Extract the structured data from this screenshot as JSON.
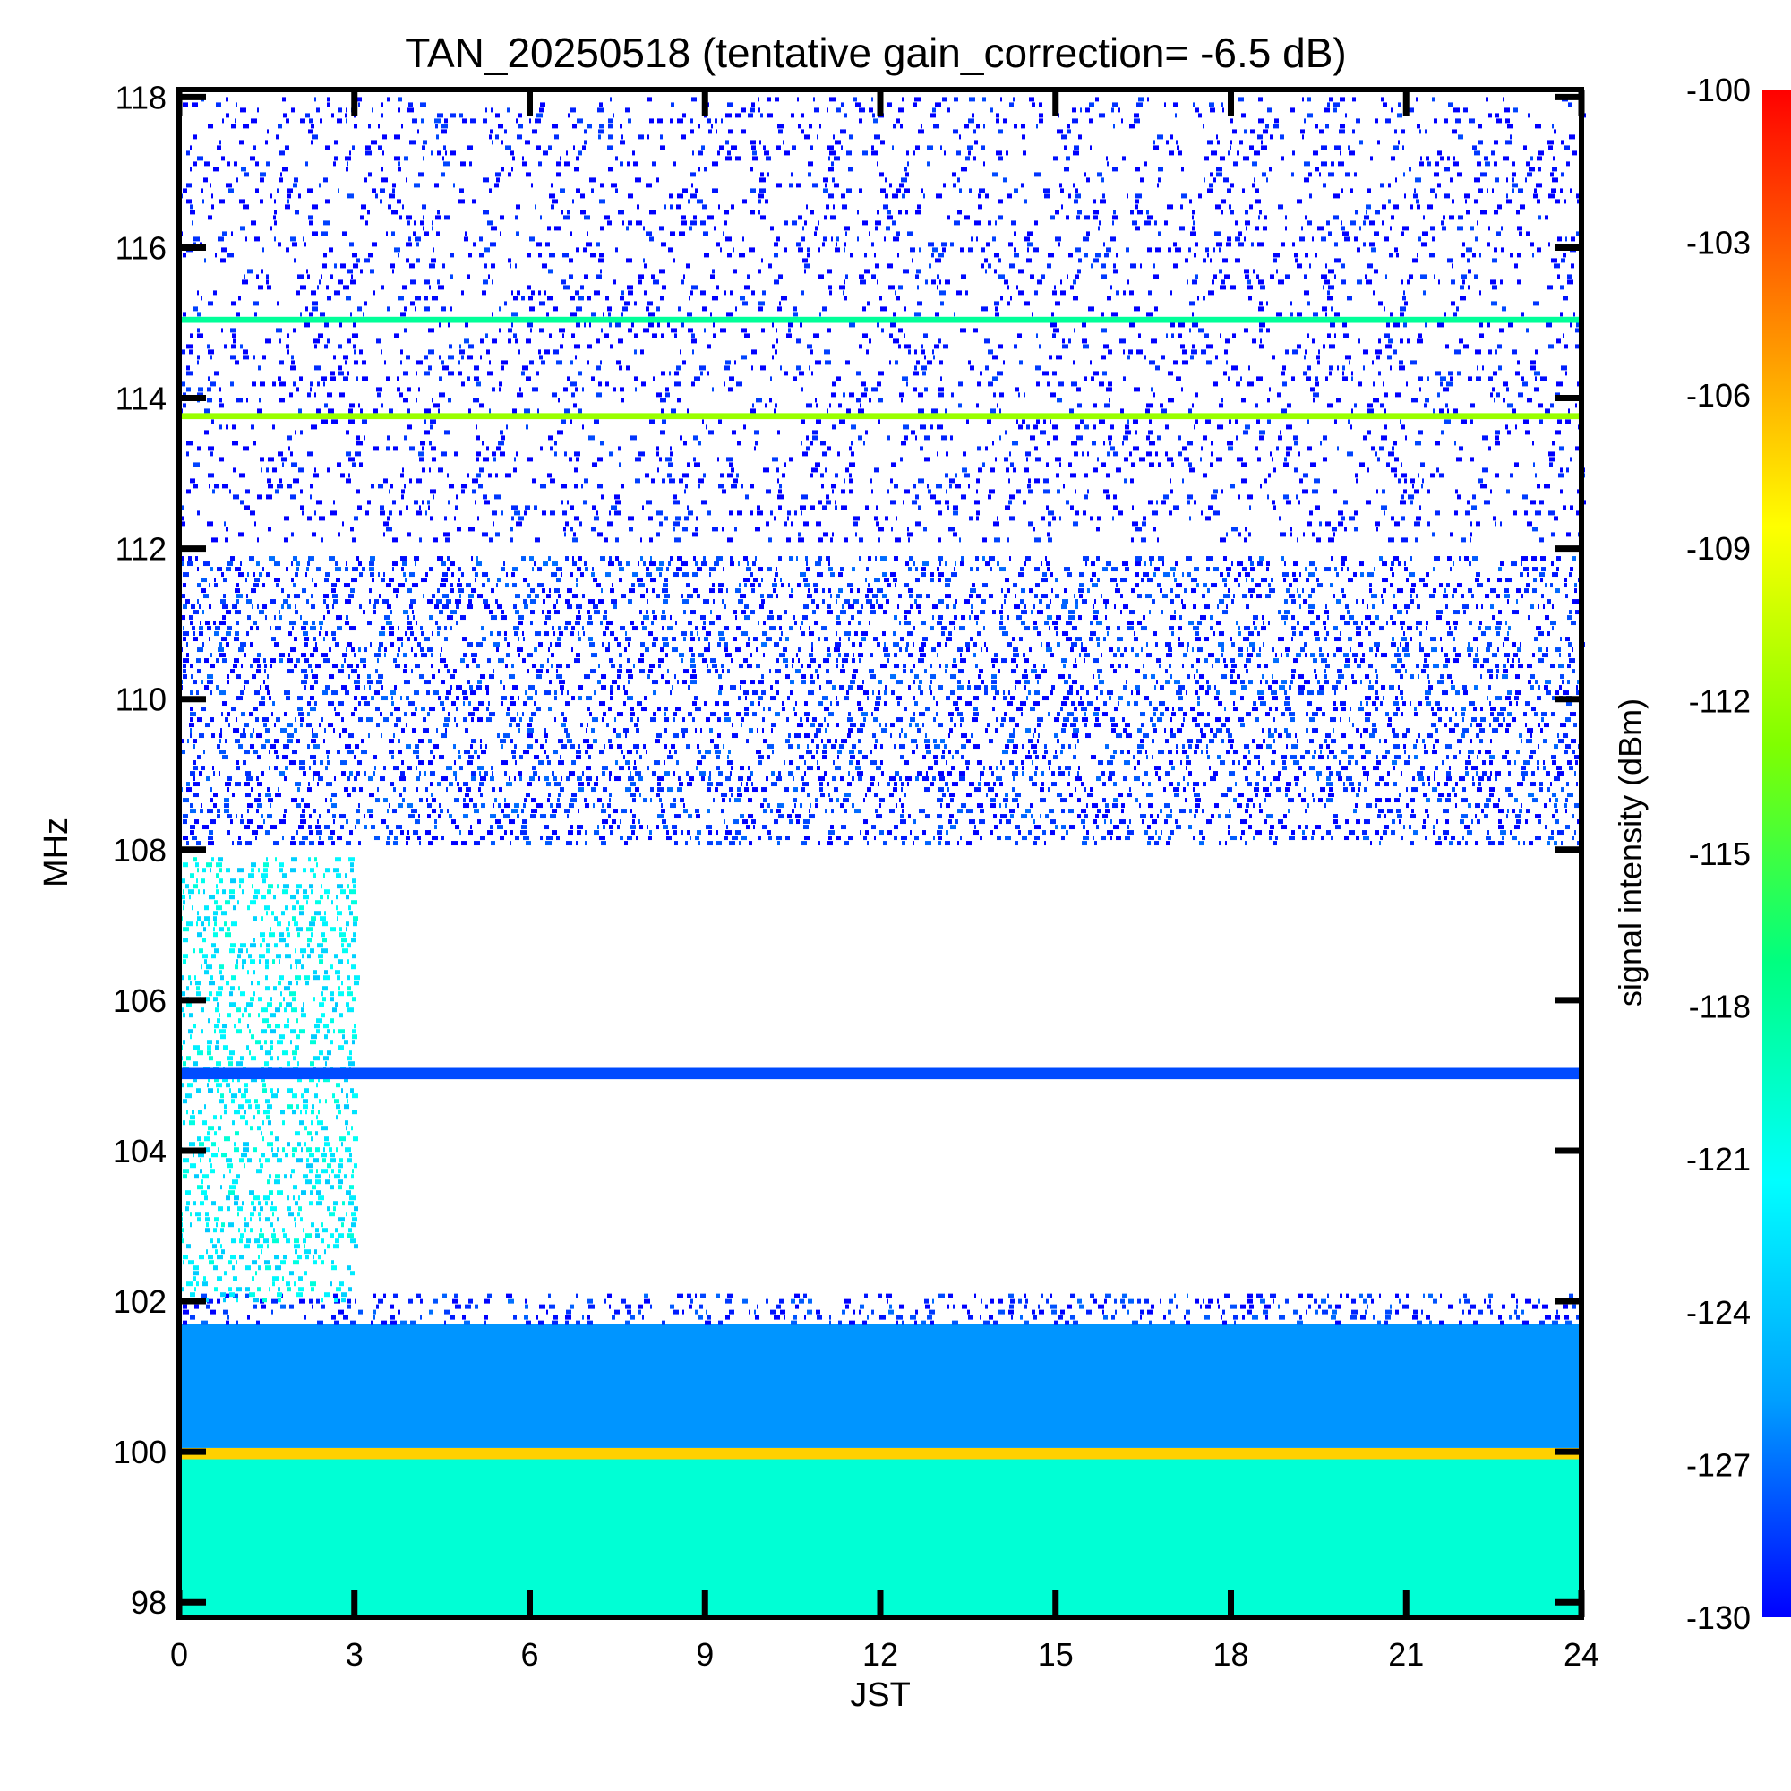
{
  "chart_data": {
    "type": "heatmap",
    "title": "TAN_20250518 (tentative gain_correction= -6.5 dB)",
    "xlabel": "JST",
    "ylabel": "MHz",
    "colorbar_label": "signal intensity (dBm)",
    "xlim": [
      0,
      24
    ],
    "ylim": [
      97.8,
      118.1
    ],
    "x_ticks": [
      "0",
      "3",
      "6",
      "9",
      "12",
      "15",
      "18",
      "21",
      "24"
    ],
    "y_ticks": [
      "98",
      "100",
      "102",
      "104",
      "106",
      "108",
      "110",
      "112",
      "114",
      "116",
      "118"
    ],
    "colorbar_range": [
      -130,
      -100
    ],
    "colorbar_ticks": [
      "-100",
      "-103",
      "-106",
      "-109",
      "-112",
      "-115",
      "-118",
      "-121",
      "-124",
      "-127",
      "-130"
    ],
    "colormap": [
      "#0000ff",
      "#00a0ff",
      "#00ffff",
      "#00ff80",
      "#80ff00",
      "#ffff00",
      "#ff8000",
      "#ff0000"
    ],
    "bands": [
      {
        "from_mhz": 97.8,
        "to_mhz": 99.9,
        "level_dbm": -120,
        "density": 1.0,
        "from_jst": 0,
        "to_jst": 24
      },
      {
        "from_mhz": 99.9,
        "to_mhz": 100.05,
        "level_dbm": -107,
        "density": 1.0,
        "from_jst": 0,
        "to_jst": 24
      },
      {
        "from_mhz": 100.05,
        "to_mhz": 101.7,
        "level_dbm": -126,
        "density": 1.0,
        "from_jst": 0,
        "to_jst": 24
      },
      {
        "from_mhz": 101.7,
        "to_mhz": 102.1,
        "level_dbm": -129,
        "density": 0.45,
        "from_jst": 0,
        "to_jst": 24
      },
      {
        "from_mhz": 102.0,
        "to_mhz": 107.9,
        "level_dbm": -122,
        "density": 0.6,
        "from_jst": 0,
        "to_jst": 3
      },
      {
        "from_mhz": 104.95,
        "to_mhz": 105.1,
        "level_dbm": -128,
        "density": 1.0,
        "from_jst": 0,
        "to_jst": 24
      },
      {
        "from_mhz": 108.1,
        "to_mhz": 111.9,
        "level_dbm": -129,
        "density": 0.55,
        "from_jst": 0,
        "to_jst": 24
      },
      {
        "from_mhz": 112.1,
        "to_mhz": 118.0,
        "level_dbm": -130,
        "density": 0.25,
        "from_jst": 0,
        "to_jst": 24
      },
      {
        "from_mhz": 113.72,
        "to_mhz": 113.8,
        "level_dbm": -112,
        "density": 1.0,
        "from_jst": 0,
        "to_jst": 24
      },
      {
        "from_mhz": 115.0,
        "to_mhz": 115.08,
        "level_dbm": -118,
        "density": 1.0,
        "from_jst": 0,
        "to_jst": 24
      }
    ]
  }
}
